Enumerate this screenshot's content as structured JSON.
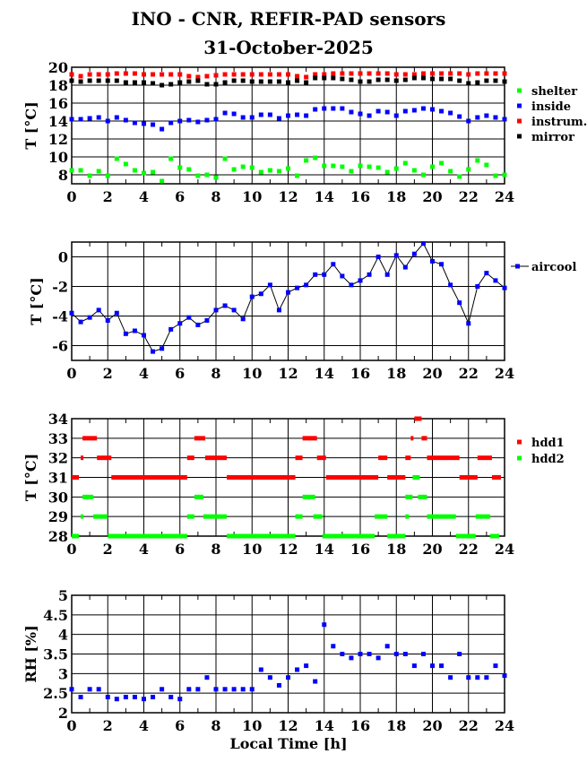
{
  "title": "INO - CNR, REFIR-PAD sensors",
  "date": "31-October-2025",
  "xlabel": "Local Time [h]",
  "chart_data": [
    {
      "type": "scatter",
      "ylabel": "T [°C]",
      "xlim": [
        0,
        24
      ],
      "ylim": [
        7,
        20
      ],
      "yticks": [
        8,
        10,
        12,
        14,
        16,
        18,
        20
      ],
      "xticks": [
        0,
        2,
        4,
        6,
        8,
        10,
        12,
        14,
        16,
        18,
        20,
        22,
        24
      ],
      "grid": true,
      "legend": "right",
      "x_step": 0.5,
      "series": [
        {
          "name": "shelter",
          "color": "#00ff00",
          "values": [
            8.5,
            8.5,
            7.9,
            8.4,
            7.9,
            9.8,
            9.2,
            8.5,
            8.2,
            8.3,
            7.3,
            9.8,
            8.8,
            8.6,
            7.9,
            8.0,
            7.7,
            9.8,
            8.6,
            8.9,
            8.8,
            8.3,
            8.5,
            8.4,
            8.7,
            7.9,
            9.6,
            9.9,
            9.0,
            9.0,
            8.9,
            8.4,
            9.0,
            8.9,
            8.8,
            8.3,
            8.7,
            9.3,
            8.5,
            8.0,
            8.9,
            9.3,
            8.4,
            7.8,
            8.6,
            9.6,
            9.1,
            7.9,
            8.0
          ]
        },
        {
          "name": "inside",
          "color": "#0000ff",
          "values": [
            14.2,
            14.2,
            14.3,
            14.4,
            14.0,
            14.4,
            14.1,
            13.8,
            13.7,
            13.6,
            13.1,
            13.8,
            14.0,
            14.1,
            13.9,
            14.1,
            14.2,
            14.9,
            14.8,
            14.4,
            14.4,
            14.7,
            14.7,
            14.3,
            14.6,
            14.7,
            14.6,
            15.3,
            15.4,
            15.4,
            15.4,
            15.0,
            14.8,
            14.6,
            15.1,
            15.0,
            14.6,
            15.1,
            15.2,
            15.4,
            15.3,
            15.1,
            14.9,
            14.5,
            14.0,
            14.4,
            14.6,
            14.4,
            14.2
          ]
        },
        {
          "name": "instrum.",
          "color": "#ff0000",
          "values": [
            19.2,
            19.0,
            19.2,
            19.2,
            19.2,
            19.3,
            19.3,
            19.3,
            19.2,
            19.2,
            19.2,
            19.2,
            19.2,
            19.0,
            18.9,
            19.0,
            19.1,
            19.2,
            19.2,
            19.2,
            19.2,
            19.2,
            19.2,
            19.2,
            19.2,
            19.0,
            18.9,
            19.2,
            19.2,
            19.3,
            19.3,
            19.3,
            19.3,
            19.3,
            19.3,
            19.3,
            19.2,
            19.2,
            19.2,
            19.3,
            19.3,
            19.3,
            19.3,
            19.3,
            19.2,
            19.3,
            19.3,
            19.3,
            19.3
          ]
        },
        {
          "name": "mirror",
          "color": "#000000",
          "values": [
            18.5,
            18.4,
            18.5,
            18.5,
            18.5,
            18.5,
            18.3,
            18.3,
            18.3,
            18.2,
            18.0,
            18.1,
            18.3,
            18.4,
            18.5,
            18.1,
            18.1,
            18.3,
            18.5,
            18.5,
            18.4,
            18.4,
            18.4,
            18.4,
            18.3,
            18.5,
            18.3,
            18.8,
            18.8,
            18.8,
            18.7,
            18.6,
            18.4,
            18.4,
            18.6,
            18.6,
            18.5,
            18.6,
            18.8,
            18.8,
            18.7,
            18.7,
            18.7,
            18.5,
            18.2,
            18.3,
            18.5,
            18.5,
            18.4
          ]
        }
      ]
    },
    {
      "type": "line",
      "ylabel": "T [°C]",
      "xlim": [
        0,
        24
      ],
      "ylim": [
        -7,
        1
      ],
      "yticks": [
        -6,
        -4,
        -2,
        0
      ],
      "xticks": [
        0,
        2,
        4,
        6,
        8,
        10,
        12,
        14,
        16,
        18,
        20,
        22,
        24
      ],
      "grid": true,
      "legend": "right",
      "x_step": 0.5,
      "series": [
        {
          "name": "aircool",
          "color": "#0000ff",
          "values": [
            -3.8,
            -4.4,
            -4.1,
            -3.6,
            -4.3,
            -3.8,
            -5.2,
            -5.0,
            -5.3,
            -6.4,
            -6.2,
            -4.9,
            -4.5,
            -4.1,
            -4.6,
            -4.3,
            -3.6,
            -3.3,
            -3.6,
            -4.2,
            -2.7,
            -2.5,
            -1.9,
            -3.6,
            -2.4,
            -2.1,
            -1.9,
            -1.2,
            -1.2,
            -0.5,
            -1.3,
            -1.9,
            -1.6,
            -1.2,
            0.0,
            -1.2,
            0.1,
            -0.7,
            0.2,
            0.9,
            -0.3,
            -0.5,
            -1.9,
            -3.1,
            -4.5,
            -2.0,
            -1.1,
            -1.6,
            -2.1
          ]
        }
      ]
    },
    {
      "type": "scatter",
      "ylabel": "T [°C]",
      "xlim": [
        0,
        24
      ],
      "ylim": [
        28,
        34
      ],
      "yticks": [
        28,
        29,
        30,
        31,
        32,
        33,
        34
      ],
      "xticks": [
        0,
        2,
        4,
        6,
        8,
        10,
        12,
        14,
        16,
        18,
        20,
        22,
        24
      ],
      "grid": true,
      "legend": "right",
      "series": [
        {
          "name": "hdd1",
          "color": "#ff0000",
          "segments": [
            [
              0,
              0.4,
              31
            ],
            [
              0.5,
              0.6,
              32
            ],
            [
              0.6,
              1.4,
              33
            ],
            [
              1.4,
              2.2,
              32
            ],
            [
              2.2,
              6.4,
              31
            ],
            [
              6.4,
              6.8,
              32
            ],
            [
              6.8,
              7.4,
              33
            ],
            [
              7.4,
              8.6,
              32
            ],
            [
              8.6,
              12.4,
              31
            ],
            [
              12.4,
              12.8,
              32
            ],
            [
              12.8,
              13.6,
              33
            ],
            [
              13.6,
              14.1,
              32
            ],
            [
              14.1,
              17,
              31
            ],
            [
              17,
              17.5,
              32
            ],
            [
              17.5,
              18.5,
              31
            ],
            [
              18.5,
              18.8,
              32
            ],
            [
              18.8,
              18.9,
              33
            ],
            [
              19,
              19.4,
              34
            ],
            [
              19.4,
              19.7,
              33
            ],
            [
              19.7,
              21.5,
              32
            ],
            [
              21.5,
              22.5,
              31
            ],
            [
              22.5,
              23.3,
              32
            ],
            [
              23.3,
              23.8,
              31
            ]
          ]
        },
        {
          "name": "hdd2",
          "color": "#00ff00",
          "segments": [
            [
              0,
              0.4,
              28
            ],
            [
              0.5,
              0.6,
              29
            ],
            [
              0.6,
              1.2,
              30
            ],
            [
              1.2,
              2,
              29
            ],
            [
              2,
              6.4,
              28
            ],
            [
              6.4,
              6.8,
              29
            ],
            [
              6.8,
              7.3,
              30
            ],
            [
              7.3,
              8.6,
              29
            ],
            [
              8.6,
              12.4,
              28
            ],
            [
              12.4,
              12.8,
              29
            ],
            [
              12.8,
              13.5,
              30
            ],
            [
              13.4,
              13.9,
              29
            ],
            [
              13.9,
              16.8,
              28
            ],
            [
              16.8,
              17.5,
              29
            ],
            [
              17.5,
              18.5,
              28
            ],
            [
              18.5,
              18.7,
              29
            ],
            [
              18.5,
              18.9,
              30
            ],
            [
              18.9,
              19.3,
              31
            ],
            [
              19.2,
              19.7,
              30
            ],
            [
              19.7,
              21.3,
              29
            ],
            [
              21.3,
              22.4,
              28
            ],
            [
              22.4,
              23.2,
              29
            ],
            [
              23.2,
              23.7,
              28
            ]
          ]
        }
      ]
    },
    {
      "type": "scatter",
      "ylabel": "RH [%]",
      "xlim": [
        0,
        24
      ],
      "ylim": [
        2,
        5
      ],
      "yticks": [
        2,
        2.5,
        3,
        3.5,
        4,
        4.5,
        5
      ],
      "xticks": [
        0,
        2,
        4,
        6,
        8,
        10,
        12,
        14,
        16,
        18,
        20,
        22,
        24
      ],
      "grid": true,
      "x_step": 0.5,
      "series": [
        {
          "name": "RH",
          "color": "#0000ff",
          "values": [
            2.6,
            2.4,
            2.6,
            2.6,
            2.4,
            2.35,
            2.4,
            2.4,
            2.35,
            2.4,
            2.6,
            2.4,
            2.35,
            2.6,
            2.6,
            2.9,
            2.6,
            2.6,
            2.6,
            2.6,
            2.6,
            3.1,
            2.9,
            2.7,
            2.9,
            3.1,
            3.2,
            2.8,
            4.25,
            3.7,
            3.5,
            3.4,
            3.5,
            3.5,
            3.4,
            3.7,
            3.5,
            3.5,
            3.2,
            3.5,
            3.2,
            3.2,
            2.9,
            3.5,
            2.9,
            2.9,
            2.9,
            3.2,
            2.95
          ]
        }
      ]
    }
  ]
}
